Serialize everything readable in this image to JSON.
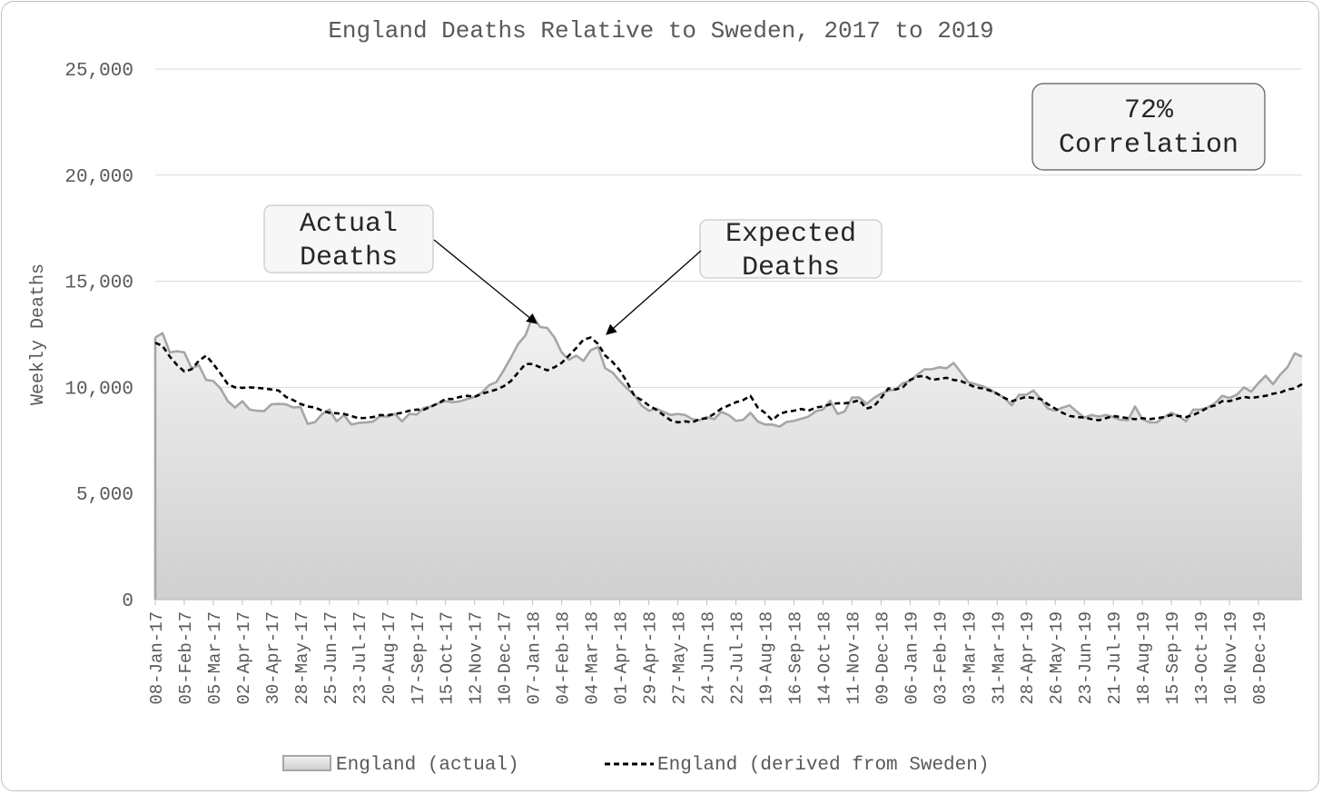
{
  "chart_data": {
    "type": "area",
    "title": "England Deaths Relative to Sweden, 2017 to 2019",
    "ylabel": "Weekly Deaths",
    "xlabel": "",
    "ylim": [
      0,
      25000
    ],
    "yticks": [
      "0",
      "5,000",
      "10,000",
      "15,000",
      "20,000",
      "25,000"
    ],
    "ytick_values": [
      0,
      5000,
      10000,
      15000,
      20000,
      25000
    ],
    "grid": "horizontal",
    "legend_position": "bottom",
    "xtick_labels": [
      "08-Jan-17",
      "05-Feb-17",
      "05-Mar-17",
      "02-Apr-17",
      "30-Apr-17",
      "28-May-17",
      "25-Jun-17",
      "23-Jul-17",
      "20-Aug-17",
      "17-Sep-17",
      "15-Oct-17",
      "12-Nov-17",
      "10-Dec-17",
      "07-Jan-18",
      "04-Feb-18",
      "04-Mar-18",
      "01-Apr-18",
      "29-Apr-18",
      "27-May-18",
      "24-Jun-18",
      "22-Jul-18",
      "19-Aug-18",
      "16-Sep-18",
      "14-Oct-18",
      "11-Nov-18",
      "09-Dec-18",
      "06-Jan-19",
      "03-Feb-19",
      "03-Mar-19",
      "31-Mar-19",
      "28-Apr-19",
      "26-May-19",
      "23-Jun-19",
      "21-Jul-19",
      "18-Aug-19",
      "15-Sep-19",
      "13-Oct-19",
      "10-Nov-19",
      "08-Dec-19"
    ],
    "series": [
      {
        "name": "England (actual)",
        "style": "area",
        "color": "#a6a6a6",
        "values": [
          12350,
          12550,
          11650,
          11700,
          11650,
          10900,
          11050,
          10350,
          10300,
          9950,
          9350,
          9050,
          9350,
          8950,
          8900,
          8880,
          9200,
          9220,
          9200,
          9050,
          9080,
          8280,
          8360,
          8750,
          8950,
          8400,
          8700,
          8250,
          8320,
          8350,
          8380,
          8650,
          8620,
          8750,
          8400,
          8750,
          8720,
          9030,
          9100,
          9250,
          9350,
          9300,
          9350,
          9450,
          9550,
          9750,
          10100,
          10250,
          10800,
          11400,
          12050,
          12450,
          13350,
          12850,
          12800,
          12350,
          11650,
          11300,
          11500,
          11250,
          11750,
          11900,
          10900,
          10700,
          10300,
          9950,
          9650,
          9150,
          8900,
          9000,
          8850,
          8700,
          8750,
          8700,
          8500,
          8450,
          8600,
          8500,
          8850,
          8700,
          8420,
          8470,
          8800,
          8400,
          8250,
          8250,
          8150,
          8370,
          8420,
          8520,
          8620,
          8870,
          8960,
          9370,
          8750,
          8870,
          9520,
          9520,
          9220,
          9500,
          9700,
          9850,
          9900,
          10200,
          10300,
          10600,
          10850,
          10850,
          10950,
          10900,
          11150,
          10700,
          10250,
          10150,
          10050,
          9900,
          9700,
          9500,
          9150,
          9650,
          9650,
          9850,
          9450,
          9000,
          8900,
          9050,
          9150,
          8850,
          8580,
          8700,
          8620,
          8700,
          8600,
          8470,
          8450,
          9100,
          8500,
          8350,
          8350,
          8600,
          8800,
          8650,
          8400,
          8950,
          8950,
          9050,
          9250,
          9600,
          9500,
          9650,
          10000,
          9800,
          10200,
          10550,
          10150,
          10600,
          10950,
          11600,
          11450
        ]
      },
      {
        "name": "England (derived from Sweden)",
        "style": "dashed-line",
        "color": "#000000",
        "values": [
          12100,
          11950,
          11450,
          11050,
          10750,
          10850,
          11250,
          11500,
          11100,
          10650,
          10150,
          10000,
          9980,
          10000,
          9980,
          9950,
          9900,
          9850,
          9550,
          9400,
          9220,
          9100,
          9050,
          8900,
          8800,
          8780,
          8750,
          8650,
          8550,
          8560,
          8600,
          8700,
          8680,
          8750,
          8800,
          8900,
          8950,
          8950,
          9100,
          9250,
          9450,
          9450,
          9550,
          9600,
          9550,
          9700,
          9800,
          9900,
          10050,
          10300,
          10700,
          11100,
          11100,
          10950,
          10800,
          10950,
          11150,
          11500,
          11850,
          12250,
          12350,
          12050,
          11500,
          11200,
          10800,
          10250,
          9600,
          9400,
          9150,
          8950,
          8700,
          8450,
          8350,
          8400,
          8350,
          8500,
          8550,
          8750,
          9000,
          9150,
          9300,
          9400,
          9600,
          9050,
          8800,
          8450,
          8750,
          8850,
          8900,
          8980,
          8900,
          9050,
          9100,
          9200,
          9250,
          9250,
          9300,
          9400,
          9000,
          9100,
          9500,
          9950,
          9900,
          10000,
          10350,
          10500,
          10550,
          10350,
          10400,
          10450,
          10350,
          10300,
          10150,
          10000,
          9950,
          9850,
          9700,
          9500,
          9350,
          9450,
          9550,
          9500,
          9450,
          9200,
          9000,
          8800,
          8650,
          8600,
          8580,
          8500,
          8450,
          8550,
          8650,
          8600,
          8550,
          8500,
          8550,
          8500,
          8550,
          8600,
          8700,
          8650,
          8600,
          8700,
          8850,
          9050,
          9150,
          9350,
          9350,
          9450,
          9550,
          9500,
          9550,
          9600,
          9700,
          9750,
          9900,
          9950,
          10150
        ]
      }
    ],
    "annotations": [
      {
        "text_lines": [
          "Actual",
          "Deaths"
        ],
        "target": "England (actual)"
      },
      {
        "text_lines": [
          "Expected",
          "Deaths"
        ],
        "target": "England (derived from Sweden)"
      }
    ],
    "correlation_box": {
      "lines": [
        "72%",
        "Correlation"
      ]
    }
  }
}
